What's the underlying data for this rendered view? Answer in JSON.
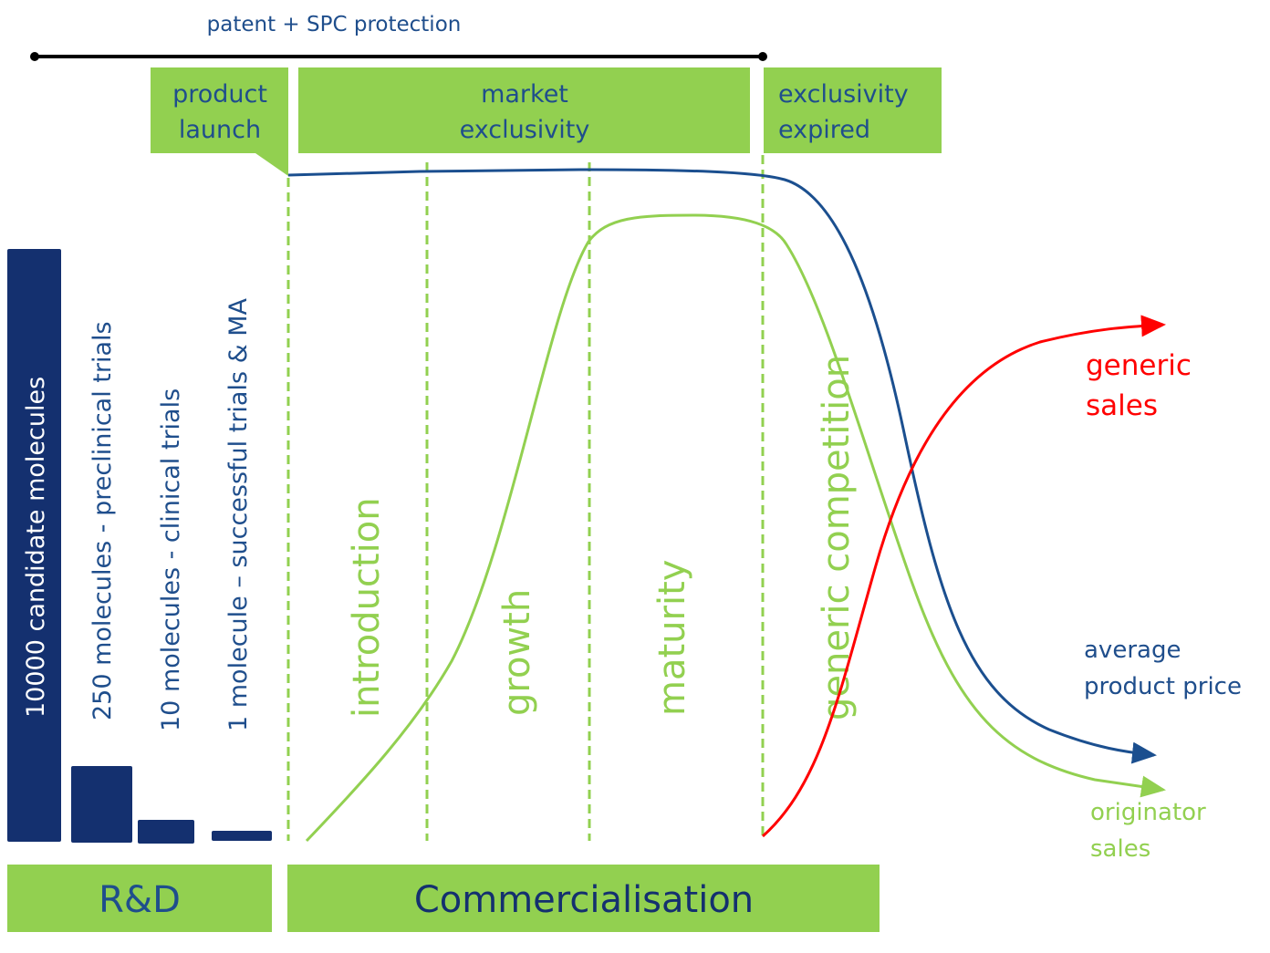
{
  "colors": {
    "green": "#92d050",
    "navy": "#14306f",
    "text_blue": "#1f4e8c",
    "price_line": "#1b4f8f",
    "generic_red": "#ff0000"
  },
  "protection": {
    "label": "patent + SPC protection"
  },
  "top_boxes": {
    "product_launch": [
      "product",
      "launch"
    ],
    "market_exclusivity": [
      "market",
      "exclusivity"
    ],
    "exclusivity_expired": [
      "exclusivity",
      "expired"
    ]
  },
  "rnd_stages": [
    {
      "label": "10000 candidate molecules",
      "count": 10000
    },
    {
      "label": "250 molecules - preclinical  trials",
      "count": 250
    },
    {
      "label": "10 molecules - clinical trials",
      "count": 10
    },
    {
      "label": "1 molecule – successful trials & MA",
      "count": 1
    }
  ],
  "phases": [
    "introduction",
    "growth",
    "maturity",
    "generic competition"
  ],
  "curve_labels": {
    "generic_sales": [
      "generic",
      "sales"
    ],
    "average_price": [
      "average",
      "product price"
    ],
    "originator_sales": [
      "originator",
      "sales"
    ]
  },
  "bottom_bars": {
    "rnd": "R&D",
    "commercialisation": "Commercialisation"
  }
}
